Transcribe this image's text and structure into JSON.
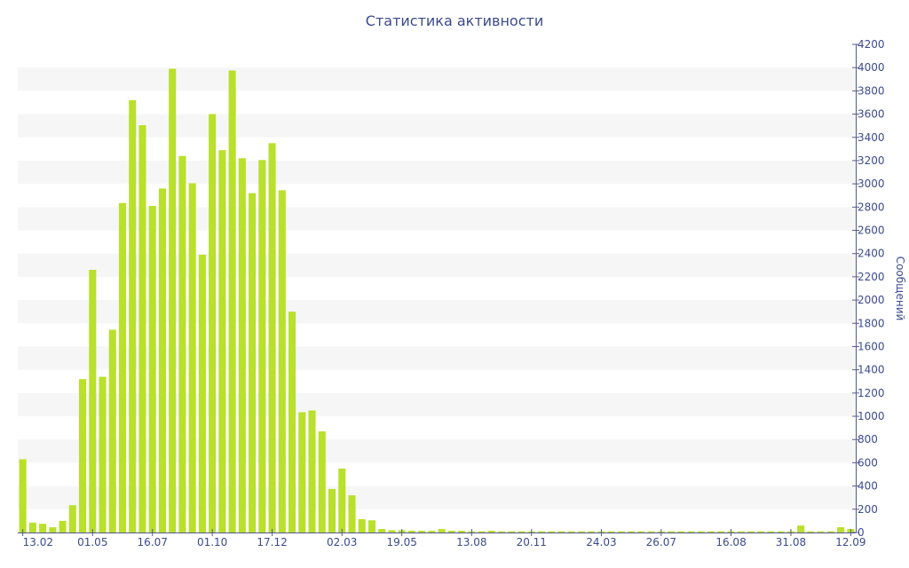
{
  "chart_data": {
    "type": "bar",
    "title": "Статистика активности",
    "ylabel": "Сообщений",
    "xlabel": "",
    "ylim": [
      0,
      4200
    ],
    "y_ticks": [
      0,
      200,
      400,
      600,
      800,
      1000,
      1200,
      1400,
      1600,
      1800,
      2000,
      2200,
      2400,
      2600,
      2800,
      3000,
      3200,
      3400,
      3600,
      3800,
      4000,
      4200
    ],
    "x_tick_labels": [
      "13.02",
      "01.05",
      "16.07",
      "01.10",
      "17.12",
      "02.03",
      "19.05",
      "13.08",
      "20.11",
      "24.03",
      "26.07",
      "16.08",
      "31.08",
      "12.09"
    ],
    "x_tick_bar_index": [
      0,
      7,
      13,
      19,
      25,
      32,
      38,
      45,
      51,
      58,
      64,
      71,
      77,
      83
    ],
    "grid": "horizontal bands",
    "y_axis_side": "right",
    "bar_color": "#b9e02b",
    "values": [
      630,
      85,
      75,
      45,
      100,
      235,
      1320,
      2260,
      1340,
      1745,
      2835,
      3720,
      3505,
      2810,
      2960,
      3990,
      3240,
      3005,
      2390,
      3600,
      3290,
      3975,
      3220,
      2920,
      3205,
      3350,
      2945,
      1900,
      1035,
      1050,
      870,
      375,
      550,
      320,
      115,
      105,
      30,
      20,
      20,
      15,
      15,
      15,
      30,
      15,
      15,
      10,
      10,
      15,
      10,
      10,
      10,
      10,
      10,
      10,
      10,
      10,
      10,
      10,
      10,
      10,
      10,
      10,
      10,
      10,
      10,
      10,
      10,
      10,
      10,
      10,
      10,
      10,
      10,
      10,
      10,
      10,
      10,
      10,
      60,
      10,
      10,
      10,
      45,
      30
    ]
  }
}
